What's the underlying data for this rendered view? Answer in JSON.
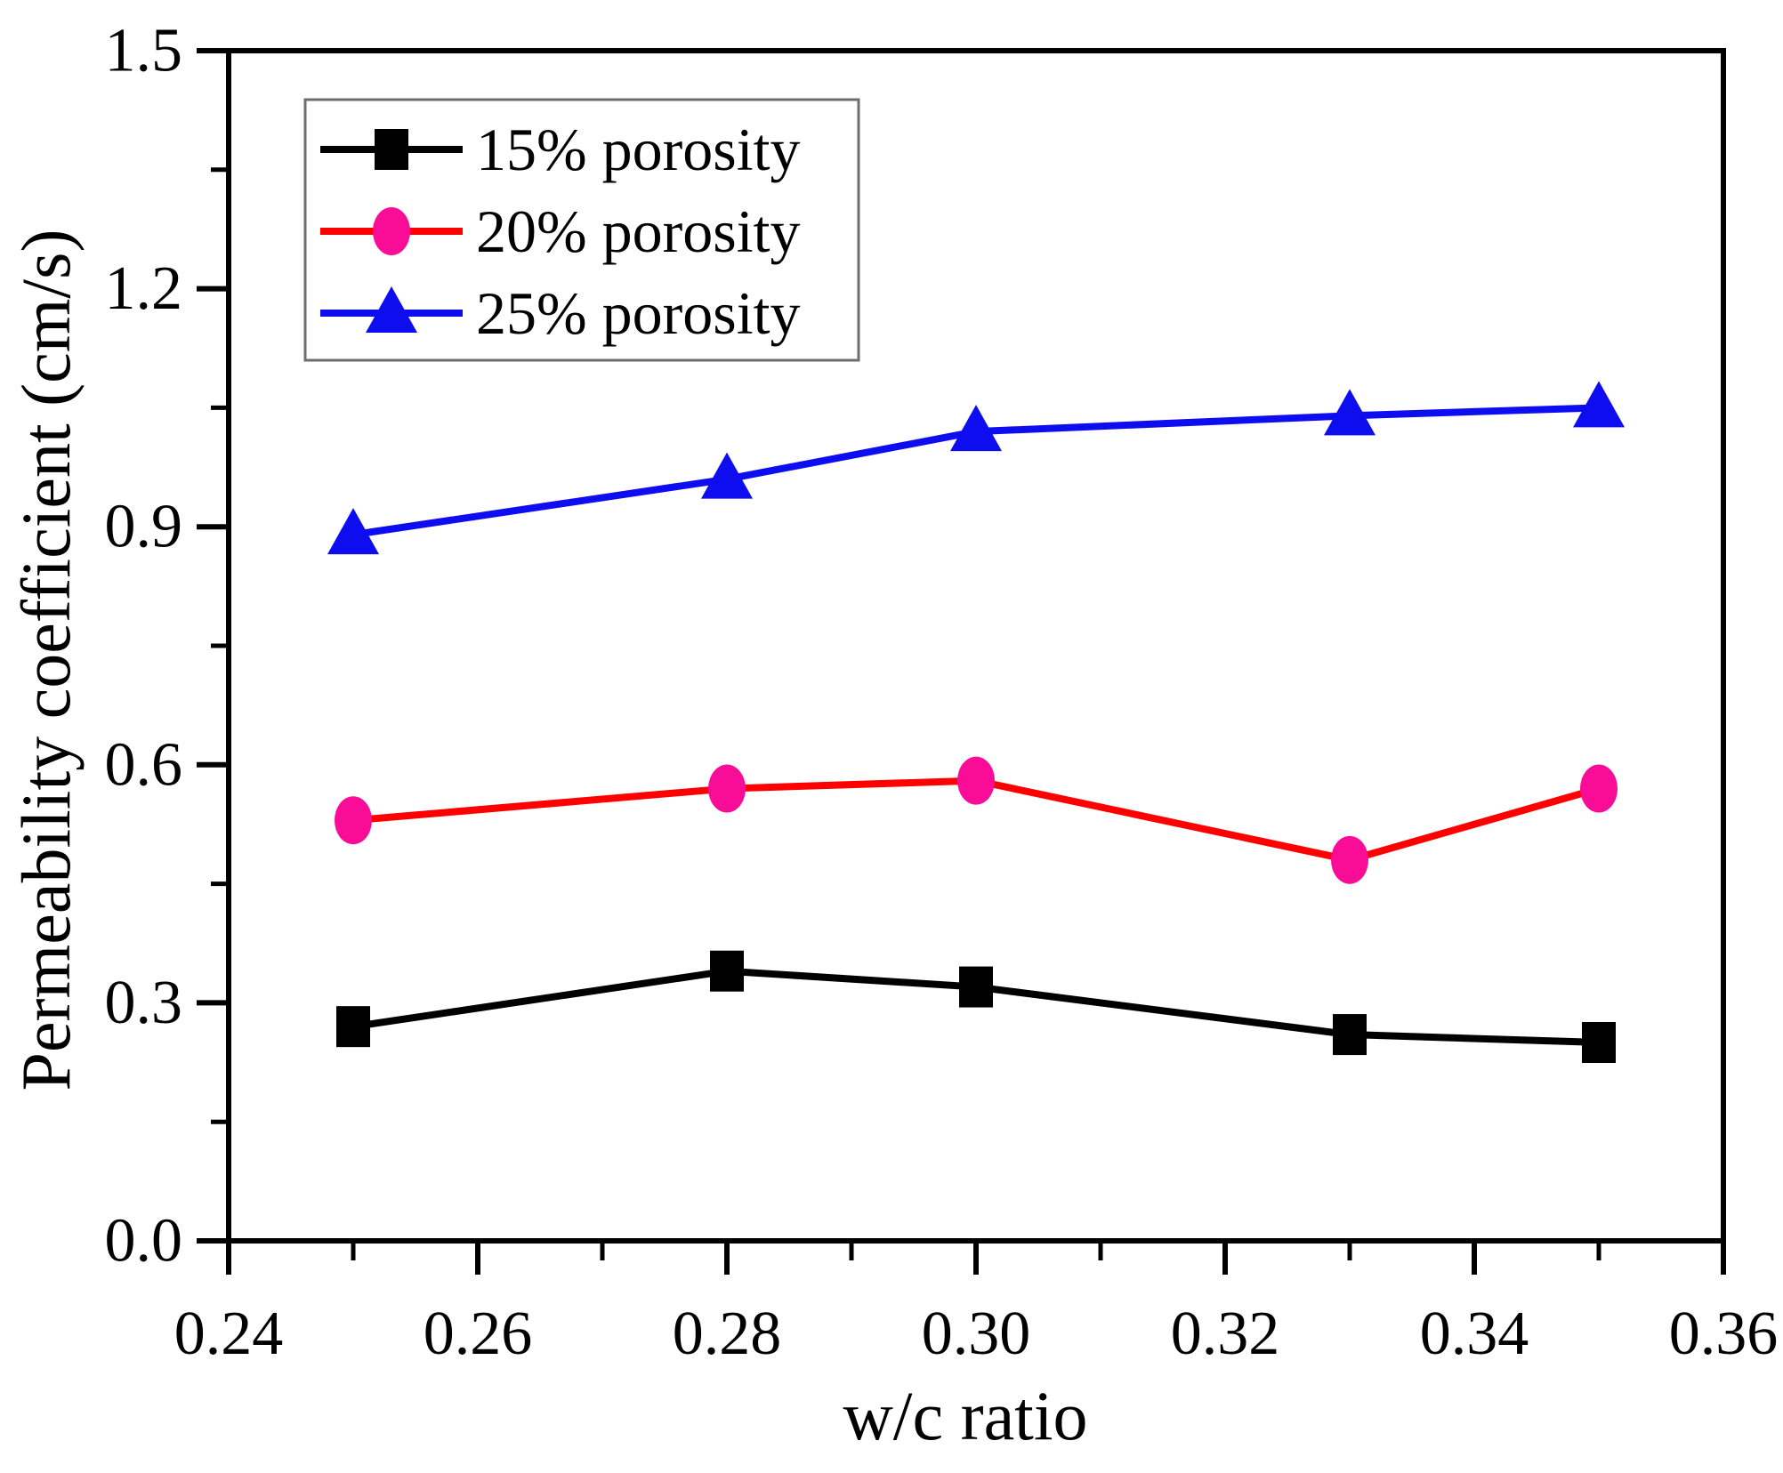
{
  "figure": {
    "background_color": "#ffffff",
    "frame_color": "#000000"
  },
  "chart_data": {
    "type": "line",
    "title": "",
    "xlabel": "w/c ratio",
    "ylabel": "Permeability coefficient (cm/s)",
    "xlim": [
      0.24,
      0.36
    ],
    "ylim": [
      0.0,
      1.5
    ],
    "x_tick_labels": [
      "0.24",
      "0.26",
      "0.28",
      "0.30",
      "0.32",
      "0.34",
      "0.36"
    ],
    "x_major_ticks": [
      0.24,
      0.26,
      0.28,
      0.3,
      0.32,
      0.34,
      0.36
    ],
    "x_minor_step": 0.01,
    "y_tick_labels": [
      "0.0",
      "0.3",
      "0.6",
      "0.9",
      "1.2",
      "1.5"
    ],
    "y_major_ticks": [
      0.0,
      0.3,
      0.6,
      0.9,
      1.2,
      1.5
    ],
    "y_minor_step": 0.15,
    "grid": false,
    "legend_position": "top-left",
    "x": [
      0.25,
      0.28,
      0.3,
      0.33,
      0.35
    ],
    "series": [
      {
        "name": "15% porosity",
        "marker": "square",
        "line_color": "#000000",
        "marker_color": "#000000",
        "values": [
          0.27,
          0.34,
          0.32,
          0.26,
          0.25
        ]
      },
      {
        "name": "20% porosity",
        "marker": "circle",
        "line_color": "#ff0000",
        "marker_color": "#fa0d96",
        "values": [
          0.53,
          0.57,
          0.58,
          0.48,
          0.57
        ]
      },
      {
        "name": "25% porosity",
        "marker": "triangle",
        "line_color": "#0d0df0",
        "marker_color": "#0d0df0",
        "values": [
          0.89,
          0.96,
          1.02,
          1.04,
          1.05
        ]
      }
    ]
  }
}
